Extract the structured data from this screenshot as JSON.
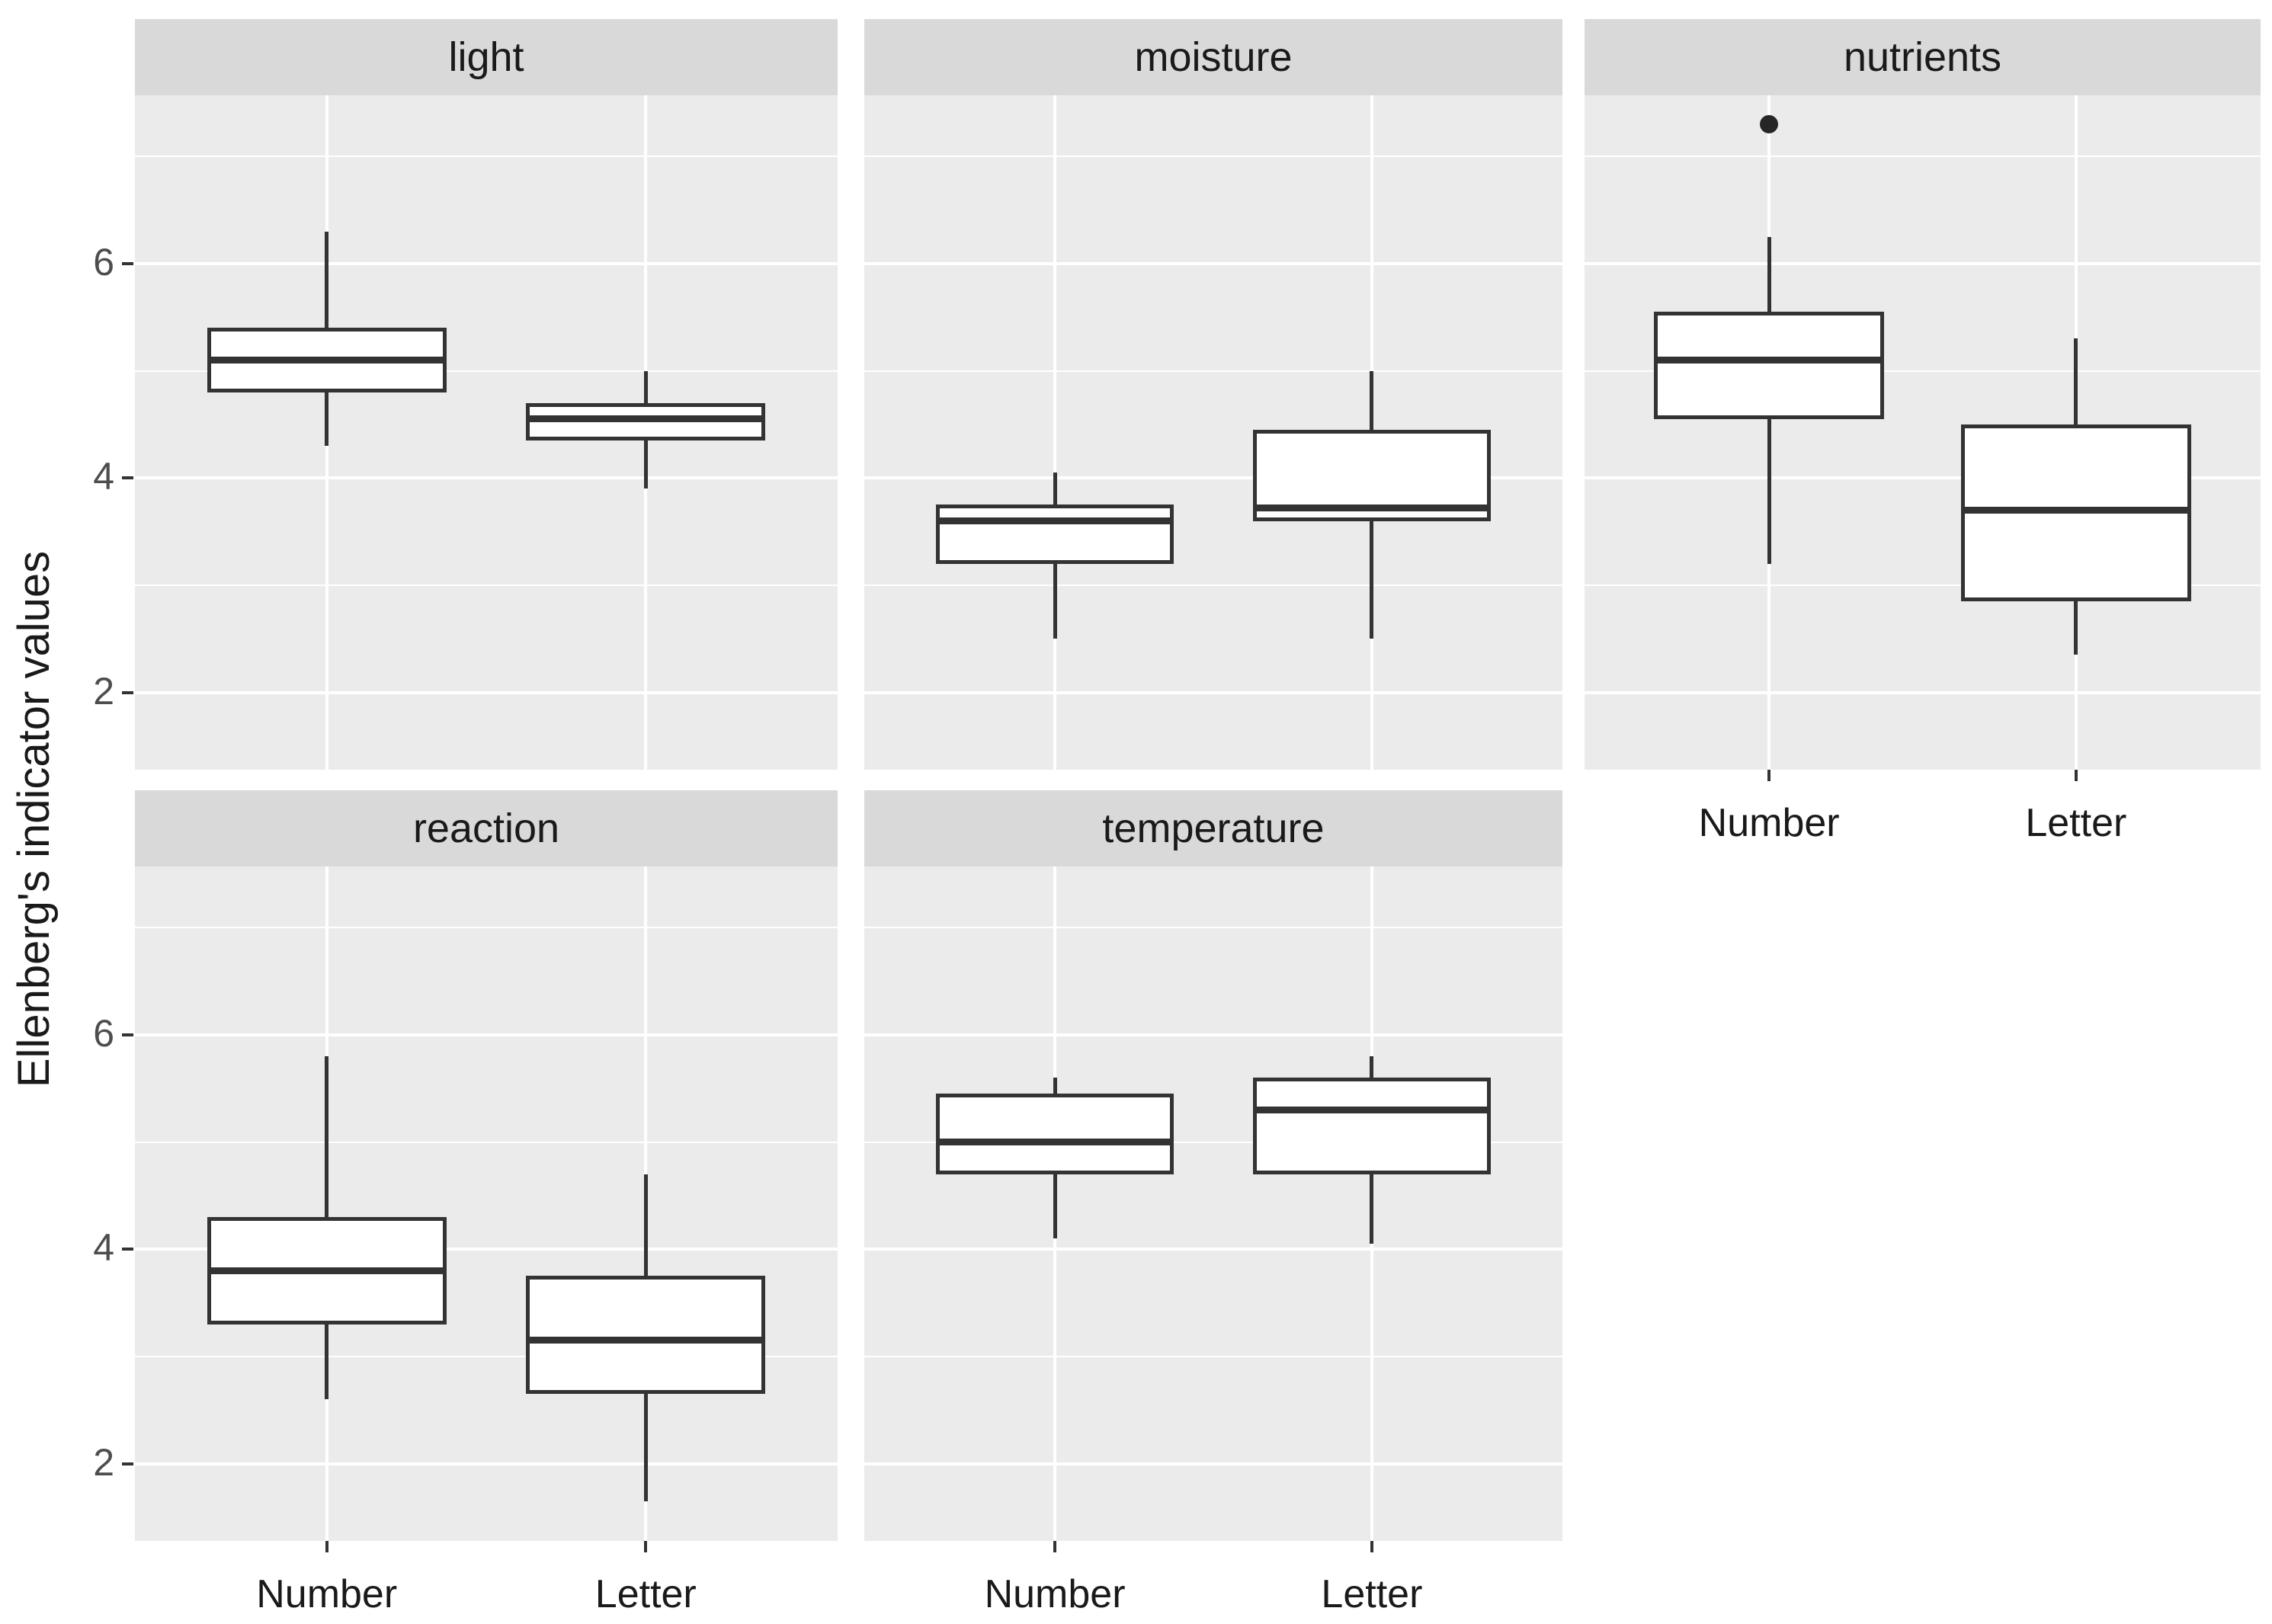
{
  "y_axis": {
    "title": "Ellenberg's indicator values",
    "breaks": [
      6,
      4,
      2
    ],
    "minor_breaks": [
      7,
      5,
      3
    ]
  },
  "x_axis": {
    "categories": [
      "Number",
      "Letter"
    ]
  },
  "colors": {
    "panel_bg": "#EBEBEB",
    "strip_bg": "#D9D9D9",
    "gridline": "#FFFFFF",
    "box_fill": "#FFFFFF",
    "box_border": "#333333",
    "outlier": "#262626",
    "tick_mark": "#333333",
    "tick_label_text": "#4D4D4D",
    "label_text": "#1A1A1A"
  },
  "chart_data": {
    "type": "boxplot",
    "title": "",
    "xlabel": "",
    "ylabel": "Ellenberg's indicator values",
    "ylim": [
      1.28,
      7.57
    ],
    "y_breaks": [
      2,
      4,
      6
    ],
    "y_minor_breaks": [
      3,
      5,
      7
    ],
    "grid": "on",
    "legend_position": "none",
    "categories": [
      "Number",
      "Letter"
    ],
    "facets": [
      {
        "label": "light",
        "row": 0,
        "col": 0,
        "x_axis": false,
        "boxes": [
          {
            "category": "Number",
            "whisker_low": 4.3,
            "q1": 4.8,
            "median": 5.1,
            "q3": 5.4,
            "whisker_high": 6.3,
            "outliers": []
          },
          {
            "category": "Letter",
            "whisker_low": 3.9,
            "q1": 4.35,
            "median": 4.55,
            "q3": 4.7,
            "whisker_high": 5.0,
            "outliers": []
          }
        ]
      },
      {
        "label": "moisture",
        "row": 0,
        "col": 1,
        "x_axis": false,
        "boxes": [
          {
            "category": "Number",
            "whisker_low": 2.5,
            "q1": 3.2,
            "median": 3.6,
            "q3": 3.75,
            "whisker_high": 4.05,
            "outliers": []
          },
          {
            "category": "Letter",
            "whisker_low": 2.5,
            "q1": 3.6,
            "median": 3.72,
            "q3": 4.45,
            "whisker_high": 5.0,
            "outliers": []
          }
        ]
      },
      {
        "label": "nutrients",
        "row": 0,
        "col": 2,
        "x_axis": true,
        "boxes": [
          {
            "category": "Number",
            "whisker_low": 3.2,
            "q1": 4.55,
            "median": 5.1,
            "q3": 5.55,
            "whisker_high": 6.25,
            "outliers": [
              7.3
            ]
          },
          {
            "category": "Letter",
            "whisker_low": 2.35,
            "q1": 2.85,
            "median": 3.7,
            "q3": 4.5,
            "whisker_high": 5.3,
            "outliers": []
          }
        ]
      },
      {
        "label": "reaction",
        "row": 1,
        "col": 0,
        "x_axis": true,
        "boxes": [
          {
            "category": "Number",
            "whisker_low": 2.6,
            "q1": 3.3,
            "median": 3.8,
            "q3": 4.3,
            "whisker_high": 5.8,
            "outliers": []
          },
          {
            "category": "Letter",
            "whisker_low": 1.65,
            "q1": 2.65,
            "median": 3.15,
            "q3": 3.75,
            "whisker_high": 4.7,
            "outliers": []
          }
        ]
      },
      {
        "label": "temperature",
        "row": 1,
        "col": 1,
        "x_axis": true,
        "boxes": [
          {
            "category": "Number",
            "whisker_low": 4.1,
            "q1": 4.7,
            "median": 5.0,
            "q3": 5.45,
            "whisker_high": 5.6,
            "outliers": []
          },
          {
            "category": "Letter",
            "whisker_low": 4.05,
            "q1": 4.7,
            "median": 5.3,
            "q3": 5.6,
            "whisker_high": 5.8,
            "outliers": []
          }
        ]
      }
    ]
  }
}
